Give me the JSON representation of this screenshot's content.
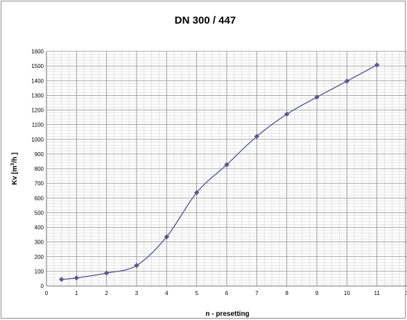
{
  "chart_data": {
    "type": "line",
    "title": "DN 300 / 447",
    "xlabel": "n - presetting",
    "ylabel_main": "Kv [m",
    "ylabel_sup": "3",
    "ylabel_tail": "/h ]",
    "xlim": [
      0,
      12
    ],
    "ylim": [
      0,
      1600
    ],
    "x_ticks": [
      "0",
      "1",
      "2",
      "3",
      "4",
      "5",
      "6",
      "7",
      "8",
      "9",
      "10",
      "11",
      "1"
    ],
    "y_ticks": [
      "0",
      "100",
      "200",
      "300",
      "400",
      "500",
      "600",
      "700",
      "800",
      "900",
      "1000",
      "1100",
      "1200",
      "1300",
      "1400",
      "1500",
      "1600"
    ],
    "grid": true,
    "series": [
      {
        "x": [
          0.5,
          1,
          2,
          3,
          4,
          5,
          6,
          7,
          8,
          9,
          10,
          11
        ],
        "values": [
          45,
          55,
          88,
          140,
          335,
          637,
          827,
          1020,
          1172,
          1288,
          1397,
          1507
        ],
        "color": "#5a5a96",
        "marker": "diamond"
      }
    ]
  }
}
